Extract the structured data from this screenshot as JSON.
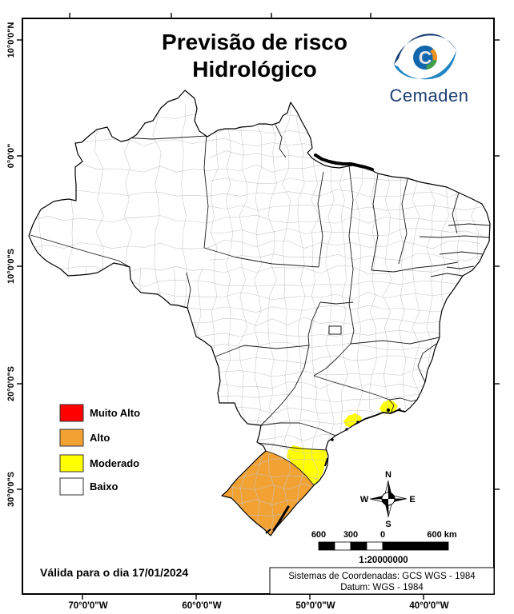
{
  "title": {
    "line1": "Previsão de risco",
    "line2": "Hidrológico"
  },
  "logo": {
    "wordmark": "Cemaden",
    "letter": "C",
    "brand_color": "#1c3e70"
  },
  "legend": {
    "items": [
      {
        "label": "Muito Alto",
        "color": "#FE0000"
      },
      {
        "label": "Alto",
        "color": "#F2A133"
      },
      {
        "label": "Moderado",
        "color": "#FFFF00"
      },
      {
        "label": "Baixo",
        "color": "#FFFFFF"
      }
    ]
  },
  "map": {
    "colors": {
      "land": "#FFFFFF",
      "state_border": "#1a1a1a",
      "municipality_border": "#c6c6c6",
      "frame": "#000000"
    }
  },
  "axes": {
    "latitude_labels": [
      "10°0'0\"N",
      "0°0'0\"",
      "10°0'0\"S",
      "20°0'0\"S",
      "30°0'0\"S"
    ],
    "longitude_labels": [
      "70°0'0\"W",
      "60°0'0\"W",
      "50°0'0\"W",
      "40°0'0\"W"
    ]
  },
  "compass": {
    "n": "N",
    "s": "S",
    "e": "E",
    "w": "W"
  },
  "scale_bar": {
    "tick_labels": [
      "600",
      "300",
      "0",
      "600 km"
    ],
    "ratio": "1:20000000"
  },
  "footer": {
    "validity": "Válida para o dia 17/01/2024"
  },
  "coordinate_system": {
    "line1": "Sistemas de Coordenadas: GCS WGS - 1984",
    "line2": "Datum: WGS - 1984"
  }
}
